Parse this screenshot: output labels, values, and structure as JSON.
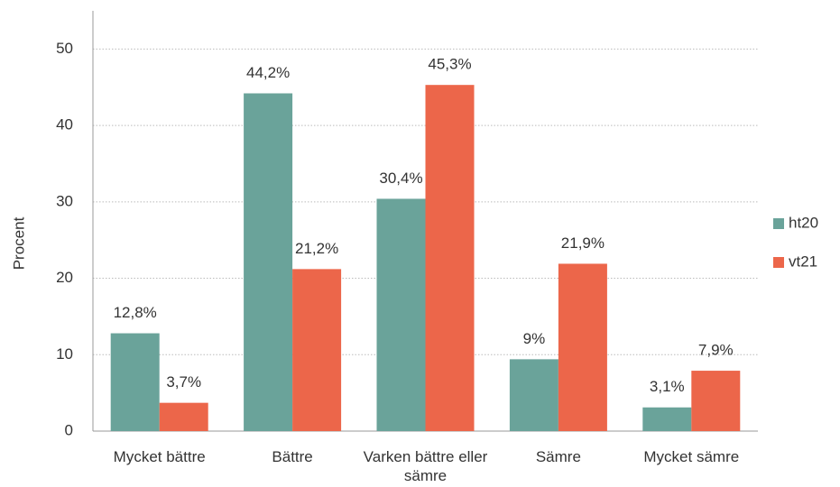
{
  "chart_data": {
    "type": "bar",
    "y_label": "Procent",
    "categories": [
      "Mycket bättre",
      "Bättre",
      "Varken bättre eller sämre",
      "Sämre",
      "Mycket sämre"
    ],
    "series": [
      {
        "name": "ht20",
        "color": "#6aa39a",
        "values": [
          12.8,
          44.2,
          30.4,
          9.4,
          3.1
        ],
        "value_labels": [
          "12,8%",
          "44,2%",
          "30,4%",
          "9%",
          "3,1%"
        ]
      },
      {
        "name": "vt21",
        "color": "#ec664a",
        "values": [
          3.7,
          21.2,
          45.3,
          21.9,
          7.9
        ],
        "value_labels": [
          "3,7%",
          "21,2%",
          "45,3%",
          "21,9%",
          "7,9%"
        ]
      }
    ],
    "ylim": [
      0,
      55
    ],
    "yticks": [
      0,
      10,
      20,
      30,
      40,
      50
    ],
    "grid": true,
    "legend": "right"
  }
}
